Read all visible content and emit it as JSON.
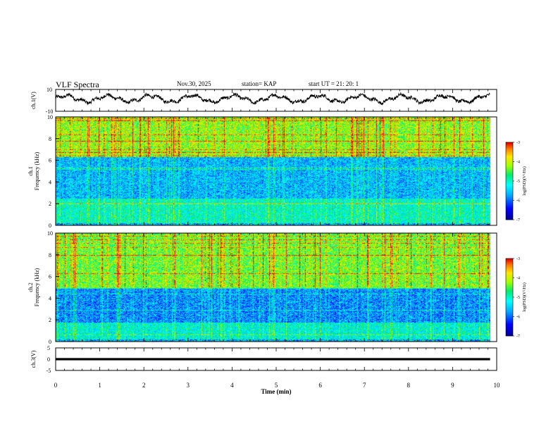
{
  "header": {
    "title": "VLF Spectra",
    "date": "Nov.30, 2025",
    "station": "station= KAP",
    "start": "start  UT  =   21: 20: 1"
  },
  "chart_data": [
    {
      "type": "line",
      "panel": "ch1-waveform",
      "ylabel": "ch.1(V)",
      "ylim": [
        -10,
        10
      ],
      "yticks": [
        "10",
        "-10"
      ],
      "xlim": [
        0,
        10
      ],
      "x_end": 9.85,
      "series": [
        {
          "name": "ch.1 amplitude",
          "approx_range": [
            -4,
            6
          ]
        }
      ]
    },
    {
      "type": "heatmap",
      "panel": "ch1-spectrogram",
      "ylabel": "ch.1\nFrequency  (kHz)",
      "ylim": [
        0,
        10
      ],
      "yticks": [
        "0",
        "2",
        "4",
        "6",
        "8",
        "10"
      ],
      "xlim": [
        0,
        10
      ],
      "bands": [
        {
          "name": "upper",
          "from_khz": 6.3,
          "to_khz": 10,
          "log_psd_approx": -4.2
        },
        {
          "name": "middle",
          "from_khz": 2.5,
          "to_khz": 6.3,
          "log_psd_approx": -5.6
        },
        {
          "name": "lower",
          "from_khz": 0,
          "to_khz": 2.5,
          "log_psd_approx": -5.0
        }
      ],
      "colorbar": {
        "label": "log(PSD)(V²/Hz)",
        "range": [
          -7,
          -3
        ],
        "ticks": [
          "-3",
          "-4",
          "-5",
          "-6",
          "-7"
        ]
      }
    },
    {
      "type": "heatmap",
      "panel": "ch2-spectrogram",
      "ylabel": "ch.2\nFrequency  (kHz)",
      "ylim": [
        0,
        10
      ],
      "yticks": [
        "0",
        "2",
        "4",
        "6",
        "8",
        "10"
      ],
      "xlim": [
        0,
        10
      ],
      "bands": [
        {
          "name": "upper",
          "from_khz": 5.0,
          "to_khz": 10,
          "log_psd_approx": -4.3
        },
        {
          "name": "middle",
          "from_khz": 1.8,
          "to_khz": 5.0,
          "log_psd_approx": -5.8
        },
        {
          "name": "lower",
          "from_khz": 0,
          "to_khz": 1.8,
          "log_psd_approx": -5.1
        }
      ],
      "colorbar": {
        "label": "log(PSD)(V²/Hz)",
        "range": [
          -7,
          -3
        ],
        "ticks": [
          "-3",
          "-4",
          "-5",
          "-6",
          "-7"
        ]
      }
    },
    {
      "type": "line",
      "panel": "ch3-waveform",
      "ylabel": "ch.3(V)",
      "ylim": [
        -5,
        5
      ],
      "yticks": [
        "5",
        "0",
        "-5"
      ],
      "xlim": [
        0,
        10
      ],
      "xlabel": "Time  (min)",
      "xticks": [
        "0",
        "1",
        "2",
        "3",
        "4",
        "5",
        "6",
        "7",
        "8",
        "9",
        "10"
      ],
      "series": [
        {
          "name": "ch.3 level",
          "value_v": 0,
          "band_halfwidth_v": 0.5,
          "x_end": 9.85
        }
      ]
    }
  ]
}
